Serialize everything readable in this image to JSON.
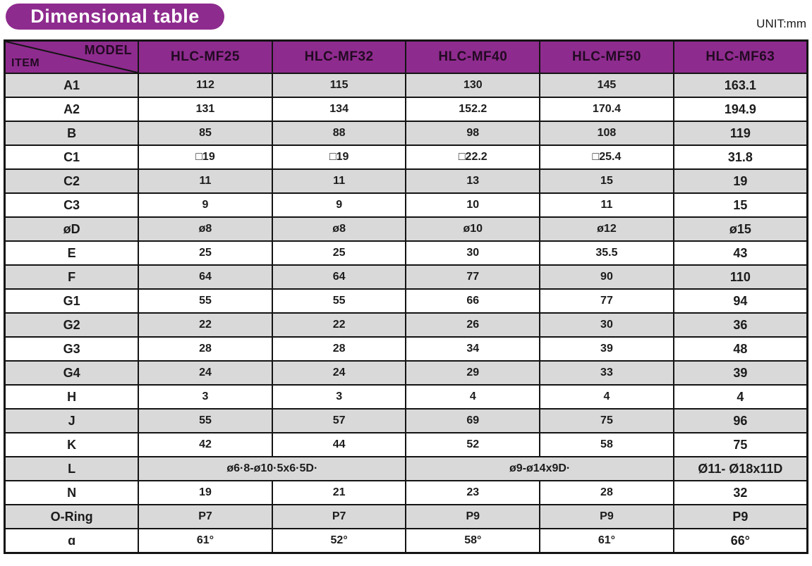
{
  "title": "Dimensional table",
  "unit_label": "UNIT:mm",
  "colors": {
    "header_purple": "#8e2b8e",
    "row_gray": "#d9d9d9",
    "grid_line": "#141414",
    "header_text": "#220a22",
    "body_text": "#1c1c1c",
    "title_text": "#ffffff"
  },
  "table": {
    "corner": {
      "model_label": "MODEL",
      "item_label": "ITEM"
    },
    "columns": [
      "HLC-MF25",
      "HLC-MF32",
      "HLC-MF40",
      "HLC-MF50",
      "HLC-MF63"
    ],
    "rows": [
      {
        "item": "A1",
        "cells": [
          {
            "t": "112"
          },
          {
            "t": "115"
          },
          {
            "t": "130"
          },
          {
            "t": "145"
          },
          {
            "t": "163.1"
          }
        ]
      },
      {
        "item": "A2",
        "cells": [
          {
            "t": "131"
          },
          {
            "t": "134"
          },
          {
            "t": "152.2"
          },
          {
            "t": "170.4"
          },
          {
            "t": "194.9"
          }
        ]
      },
      {
        "item": "B",
        "cells": [
          {
            "t": "85"
          },
          {
            "t": "88"
          },
          {
            "t": "98"
          },
          {
            "t": "108"
          },
          {
            "t": "119"
          }
        ]
      },
      {
        "item": "C1",
        "cells": [
          {
            "t": "□19"
          },
          {
            "t": "□19"
          },
          {
            "t": "□22.2"
          },
          {
            "t": "□25.4"
          },
          {
            "t": "31.8"
          }
        ]
      },
      {
        "item": "C2",
        "cells": [
          {
            "t": "11"
          },
          {
            "t": "11"
          },
          {
            "t": "13"
          },
          {
            "t": "15"
          },
          {
            "t": "19"
          }
        ]
      },
      {
        "item": "C3",
        "cells": [
          {
            "t": "9"
          },
          {
            "t": "9"
          },
          {
            "t": "10"
          },
          {
            "t": "11"
          },
          {
            "t": "15"
          }
        ]
      },
      {
        "item": "øD",
        "cells": [
          {
            "t": "ø8"
          },
          {
            "t": "ø8"
          },
          {
            "t": "ø10"
          },
          {
            "t": "ø12"
          },
          {
            "t": "ø15"
          }
        ]
      },
      {
        "item": "E",
        "cells": [
          {
            "t": "25"
          },
          {
            "t": "25"
          },
          {
            "t": "30"
          },
          {
            "t": "35.5"
          },
          {
            "t": "43"
          }
        ]
      },
      {
        "item": "F",
        "cells": [
          {
            "t": "64"
          },
          {
            "t": "64"
          },
          {
            "t": "77"
          },
          {
            "t": "90"
          },
          {
            "t": "110"
          }
        ]
      },
      {
        "item": "G1",
        "cells": [
          {
            "t": "55"
          },
          {
            "t": "55"
          },
          {
            "t": "66"
          },
          {
            "t": "77"
          },
          {
            "t": "94"
          }
        ]
      },
      {
        "item": "G2",
        "cells": [
          {
            "t": "22"
          },
          {
            "t": "22"
          },
          {
            "t": "26"
          },
          {
            "t": "30"
          },
          {
            "t": "36"
          }
        ]
      },
      {
        "item": "G3",
        "cells": [
          {
            "t": "28"
          },
          {
            "t": "28"
          },
          {
            "t": "34"
          },
          {
            "t": "39"
          },
          {
            "t": "48"
          }
        ]
      },
      {
        "item": "G4",
        "cells": [
          {
            "t": "24"
          },
          {
            "t": "24"
          },
          {
            "t": "29"
          },
          {
            "t": "33"
          },
          {
            "t": "39"
          }
        ]
      },
      {
        "item": "H",
        "cells": [
          {
            "t": "3"
          },
          {
            "t": "3"
          },
          {
            "t": "4"
          },
          {
            "t": "4"
          },
          {
            "t": "4"
          }
        ]
      },
      {
        "item": "J",
        "cells": [
          {
            "t": "55"
          },
          {
            "t": "57"
          },
          {
            "t": "69"
          },
          {
            "t": "75"
          },
          {
            "t": "96"
          }
        ]
      },
      {
        "item": "K",
        "cells": [
          {
            "t": "42"
          },
          {
            "t": "44"
          },
          {
            "t": "52"
          },
          {
            "t": "58"
          },
          {
            "t": "75"
          }
        ]
      },
      {
        "item": "L",
        "cells": [
          {
            "t": "ø6·8-ø10·5x6·5D·",
            "span": 2
          },
          {
            "t": "ø9-ø14x9D·",
            "span": 2
          },
          {
            "t": "Ø11- Ø18x11D"
          }
        ]
      },
      {
        "item": "N",
        "cells": [
          {
            "t": "19"
          },
          {
            "t": "21"
          },
          {
            "t": "23"
          },
          {
            "t": "28"
          },
          {
            "t": "32"
          }
        ]
      },
      {
        "item": "O-Ring",
        "cells": [
          {
            "t": "P7"
          },
          {
            "t": "P7"
          },
          {
            "t": "P9"
          },
          {
            "t": "P9"
          },
          {
            "t": "P9"
          }
        ]
      },
      {
        "item": "ɑ",
        "cells": [
          {
            "t": "61°"
          },
          {
            "t": "52°"
          },
          {
            "t": "58°"
          },
          {
            "t": "61°"
          },
          {
            "t": "66°"
          }
        ]
      }
    ]
  }
}
